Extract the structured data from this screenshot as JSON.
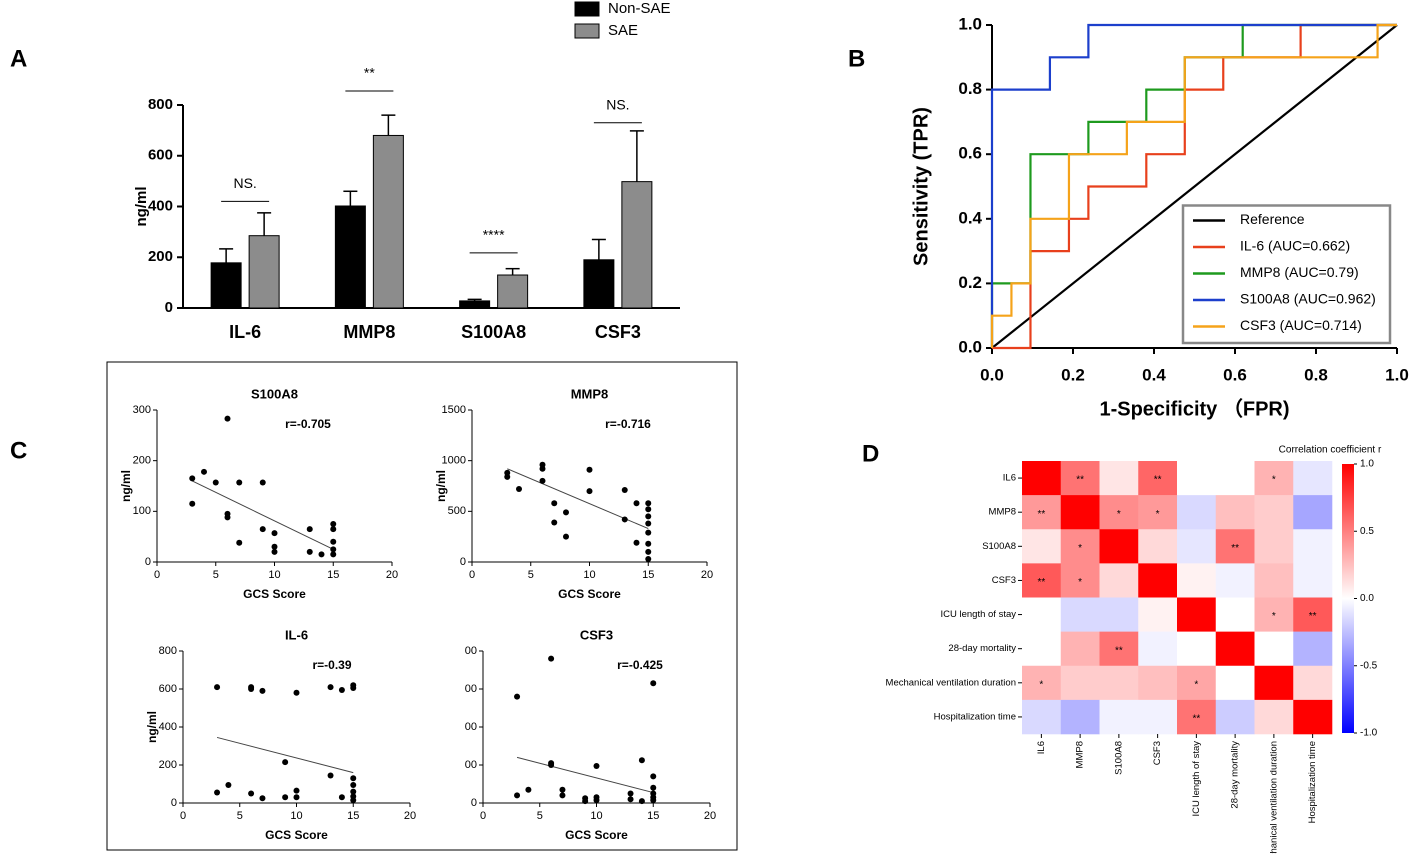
{
  "panel_labels": [
    "A",
    "B",
    "C",
    "D"
  ],
  "chart_data": [
    {
      "type": "bar",
      "ylabel": "ng/ml",
      "categories": [
        "IL-6",
        "MMP8",
        "S100A8",
        "CSF3"
      ],
      "ylim": [
        0,
        800
      ],
      "yticks": [
        0,
        200,
        400,
        600,
        800
      ],
      "series": [
        {
          "name": "Non-SAE",
          "color": "#000000",
          "values": [
            178,
            402,
            28,
            190
          ],
          "errors": [
            55,
            58,
            6,
            80
          ]
        },
        {
          "name": "SAE",
          "color": "#8c8c8c",
          "values": [
            285,
            680,
            130,
            498
          ],
          "errors": [
            90,
            80,
            25,
            200
          ]
        }
      ],
      "annotations": [
        {
          "text": "NS.",
          "value": 420
        },
        {
          "text": "**",
          "value": 855
        },
        {
          "text": "****",
          "value": 217
        },
        {
          "text": "NS.",
          "value": 730
        }
      ]
    },
    {
      "type": "line",
      "xlabel": "1-Specificity （FPR)",
      "ylabel": "Sensitivity (TPR)",
      "xlim": [
        0,
        1
      ],
      "ylim": [
        0,
        1
      ],
      "xticks": [
        {
          "value": 0,
          "label": "0.0"
        },
        {
          "value": 0.2,
          "label": "0.2"
        },
        {
          "value": 0.4,
          "label": "0.4"
        },
        {
          "value": 0.6,
          "label": "0.6"
        },
        {
          "value": 0.8,
          "label": "0.8"
        },
        {
          "value": 1,
          "label": "1.0"
        }
      ],
      "yticks": [
        {
          "value": 0,
          "label": "0.0"
        },
        {
          "value": 0.2,
          "label": "0.2"
        },
        {
          "value": 0.4,
          "label": "0.4"
        },
        {
          "value": 0.6,
          "label": "0.6"
        },
        {
          "value": 0.8,
          "label": "0.8"
        },
        {
          "value": 1,
          "label": "1.0"
        }
      ],
      "legend": "lower right",
      "series": [
        {
          "name": "Reference",
          "color": "#000000",
          "x": [
            0,
            1
          ],
          "y": [
            0,
            1
          ]
        },
        {
          "name": "IL-6 (AUC=0.662)",
          "color": "#e8401c",
          "x": [
            0,
            0.095,
            0.095,
            0.19,
            0.19,
            0.238,
            0.238,
            0.381,
            0.381,
            0.476,
            0.476,
            0.571,
            0.571,
            0.762,
            0.762,
            1
          ],
          "y": [
            0,
            0,
            0.3,
            0.3,
            0.4,
            0.4,
            0.5,
            0.5,
            0.6,
            0.6,
            0.8,
            0.8,
            0.9,
            0.9,
            1,
            1
          ]
        },
        {
          "name": "MMP8 (AUC=0.79)",
          "color": "#1e9a1e",
          "x": [
            0,
            0,
            0.095,
            0.095,
            0.238,
            0.238,
            0.381,
            0.381,
            0.476,
            0.476,
            0.619,
            0.619,
            1
          ],
          "y": [
            0,
            0.2,
            0.2,
            0.6,
            0.6,
            0.7,
            0.7,
            0.8,
            0.8,
            0.9,
            0.9,
            1,
            1
          ]
        },
        {
          "name": "S100A8 (AUC=0.962)",
          "color": "#1c3fcc",
          "x": [
            0,
            0,
            0.143,
            0.143,
            0.238,
            0.238,
            1
          ],
          "y": [
            0,
            0.8,
            0.8,
            0.9,
            0.9,
            1,
            1
          ]
        },
        {
          "name": "CSF3 (AUC=0.714)",
          "color": "#f5a31a",
          "x": [
            0,
            0,
            0.048,
            0.048,
            0.095,
            0.095,
            0.19,
            0.19,
            0.333,
            0.333,
            0.476,
            0.476,
            0.952,
            0.952,
            1
          ],
          "y": [
            0,
            0.1,
            0.1,
            0.2,
            0.2,
            0.4,
            0.4,
            0.6,
            0.6,
            0.7,
            0.7,
            0.9,
            0.9,
            1,
            1
          ]
        }
      ]
    },
    {
      "type": "scatter",
      "title": "S100A8",
      "annotation": "r=-0.705",
      "xlabel": "GCS Score",
      "ylabel": "ng/ml",
      "xlim": [
        0,
        20
      ],
      "xticks": [
        0,
        5,
        10,
        15,
        20
      ],
      "ylim": [
        0,
        300
      ],
      "yticks": [
        0,
        100,
        200,
        300
      ],
      "x": [
        3,
        3,
        4,
        5,
        6,
        6,
        6,
        7,
        7,
        9,
        9,
        10,
        10,
        10,
        13,
        13,
        14,
        15,
        15,
        15,
        15,
        15
      ],
      "y": [
        165,
        115,
        178,
        157,
        283,
        95,
        88,
        157,
        38,
        157,
        65,
        57,
        30,
        20,
        65,
        20,
        15,
        75,
        65,
        40,
        25,
        15
      ],
      "fit": {
        "x": [
          3,
          15
        ],
        "y": [
          160,
          25
        ]
      }
    },
    {
      "type": "scatter",
      "title": "MMP8",
      "annotation": "r=-0.716",
      "xlabel": "GCS Score",
      "ylabel": "ng/ml",
      "xlim": [
        0,
        20
      ],
      "xticks": [
        0,
        5,
        10,
        15,
        20
      ],
      "ylim": [
        0,
        1500
      ],
      "yticks": [
        0,
        500,
        1000,
        1500
      ],
      "x": [
        3,
        3,
        4,
        6,
        6,
        6,
        7,
        7,
        8,
        8,
        10,
        10,
        13,
        13,
        14,
        14,
        15,
        15,
        15,
        15,
        15,
        15,
        15,
        15
      ],
      "y": [
        880,
        840,
        720,
        960,
        920,
        800,
        580,
        390,
        490,
        250,
        910,
        700,
        710,
        420,
        580,
        190,
        580,
        520,
        450,
        380,
        290,
        180,
        100,
        30
      ],
      "fit": {
        "x": [
          3,
          15
        ],
        "y": [
          920,
          330
        ]
      }
    },
    {
      "type": "scatter",
      "title": "IL-6",
      "annotation": "r=-0.39",
      "xlabel": "GCS Score",
      "ylabel": "ng/ml",
      "xlim": [
        0,
        20
      ],
      "xticks": [
        0,
        5,
        10,
        15,
        20
      ],
      "ylim": [
        0,
        800
      ],
      "yticks": [
        0,
        200,
        400,
        600,
        800
      ],
      "x": [
        3,
        3,
        4,
        6,
        6,
        6,
        7,
        7,
        9,
        9,
        10,
        10,
        10,
        13,
        13,
        14,
        14,
        15,
        15,
        15,
        15,
        15,
        15,
        15
      ],
      "y": [
        610,
        55,
        95,
        610,
        600,
        50,
        590,
        25,
        215,
        30,
        580,
        65,
        30,
        610,
        145,
        595,
        30,
        620,
        605,
        130,
        95,
        60,
        35,
        15
      ],
      "fit": {
        "x": [
          3,
          15
        ],
        "y": [
          345,
          160
        ]
      }
    },
    {
      "type": "scatter",
      "title": "CSF3",
      "annotation": "r=-0.425",
      "xlabel": "GCS Score",
      "xlim": [
        0,
        20
      ],
      "xticks": [
        0,
        5,
        10,
        15,
        20
      ],
      "ylim": [
        0,
        800
      ],
      "yticks": [
        0,
        {
          "value": 200,
          "label": "00"
        },
        {
          "value": 400,
          "label": "00"
        },
        {
          "value": 600,
          "label": "00"
        },
        {
          "value": 800,
          "label": "00"
        }
      ],
      "x": [
        3,
        3,
        4,
        6,
        6,
        6,
        7,
        7,
        9,
        9,
        10,
        10,
        10,
        13,
        13,
        14,
        14,
        15,
        15,
        15,
        15,
        15,
        15
      ],
      "y": [
        560,
        40,
        70,
        760,
        210,
        200,
        70,
        40,
        25,
        10,
        195,
        30,
        15,
        50,
        20,
        225,
        10,
        630,
        140,
        80,
        50,
        30,
        15
      ],
      "fit": {
        "x": [
          3,
          15
        ],
        "y": [
          240,
          55
        ]
      }
    },
    {
      "type": "heatmap",
      "colorbar_title": "Correlation coefficient r",
      "rows": [
        "IL6",
        "MMP8",
        "S100A8",
        "CSF3",
        "ICU length of stay",
        "28-day mortality",
        "Mechanical ventilation duration",
        "Hospitalization time"
      ],
      "columns": [
        "IL6",
        "MMP8",
        "S100A8",
        "CSF3",
        "ICU length of stay",
        "28-day mortality",
        "Mechanical ventilation duration",
        "Hospitalization time"
      ],
      "values": [
        [
          1,
          0.55,
          0.1,
          0.6,
          0,
          0,
          0.3,
          -0.1
        ],
        [
          0.4,
          1,
          0.45,
          0.4,
          -0.15,
          0.25,
          0.2,
          -0.35
        ],
        [
          0.1,
          0.45,
          1,
          0.15,
          -0.1,
          0.55,
          0.2,
          -0.05
        ],
        [
          0.65,
          0.45,
          0.15,
          1,
          0.05,
          -0.05,
          0.25,
          -0.05
        ],
        [
          0,
          -0.15,
          -0.15,
          0.05,
          1,
          0,
          0.3,
          0.65
        ],
        [
          0,
          0.3,
          0.55,
          -0.05,
          0,
          1,
          0,
          -0.3
        ],
        [
          0.3,
          0.2,
          0.2,
          0.25,
          0.35,
          0,
          1,
          0.15
        ],
        [
          -0.15,
          -0.3,
          -0.05,
          -0.05,
          0.55,
          -0.2,
          0.15,
          1
        ]
      ],
      "annotations": [
        [
          null,
          "**",
          null,
          "**",
          null,
          null,
          "*",
          null
        ],
        [
          "**",
          null,
          "*",
          "*",
          null,
          null,
          null,
          null
        ],
        [
          null,
          "*",
          null,
          null,
          null,
          "**",
          null,
          null
        ],
        [
          "**",
          "*",
          null,
          null,
          null,
          null,
          null,
          null
        ],
        [
          null,
          null,
          null,
          null,
          null,
          null,
          "*",
          "**"
        ],
        [
          null,
          null,
          "**",
          null,
          null,
          null,
          null,
          null
        ],
        [
          "*",
          null,
          null,
          null,
          "*",
          null,
          null,
          null
        ],
        [
          null,
          null,
          null,
          null,
          "**",
          null,
          null,
          null
        ]
      ],
      "zlim": [
        -1,
        1
      ],
      "zticks": [
        {
          "value": 1,
          "label": "1.0"
        },
        {
          "value": 0.5,
          "label": "0.5"
        },
        {
          "value": 0,
          "label": "0.0"
        },
        {
          "value": -0.5,
          "label": "-0.5"
        },
        {
          "value": -1,
          "label": "-1.0"
        }
      ]
    }
  ]
}
